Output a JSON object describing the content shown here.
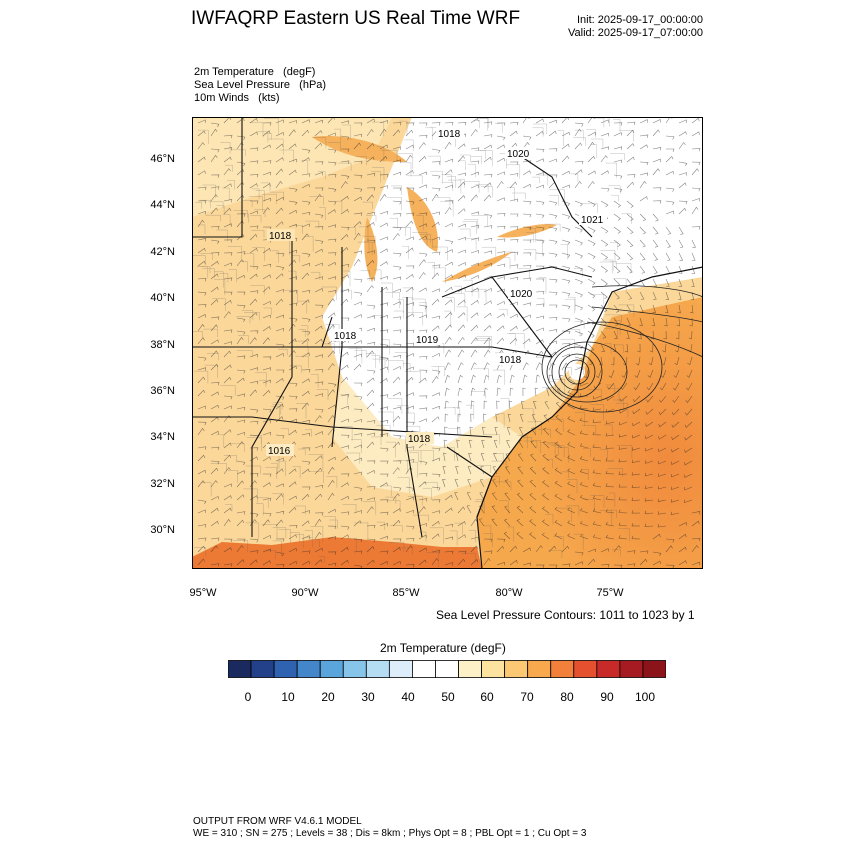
{
  "title": "IWFAQRP Eastern US Real Time WRF",
  "init": "Init: 2025-09-17_00:00:00",
  "valid": "Valid: 2025-09-17_07:00:00",
  "fields": [
    "2m Temperature   (degF)",
    "Sea Level Pressure   (hPa)",
    "10m Winds   (kts)"
  ],
  "lat_labels": [
    "46°N",
    "44°N",
    "42°N",
    "40°N",
    "38°N",
    "36°N",
    "34°N",
    "32°N",
    "30°N"
  ],
  "lon_labels": [
    "95°W",
    "90°W",
    "85°W",
    "80°W",
    "75°W"
  ],
  "pressure_labels": [
    "1018",
    "1020",
    "1021",
    "1018",
    "1020",
    "1018",
    "1019",
    "1018",
    "1016",
    "1018"
  ],
  "contour_note": "Sea Level Pressure Contours: 1011 to 1023 by 1",
  "colorbar": {
    "title": "2m Temperature  (degF)",
    "colors": [
      "#1a2a5e",
      "#23418a",
      "#2f62b0",
      "#4386c9",
      "#5aa6dc",
      "#86c4ea",
      "#b4dcf3",
      "#ddeefa",
      "#ffffff",
      "#ffffff",
      "#fdf1c8",
      "#fde2a0",
      "#fcc874",
      "#f8a94e",
      "#f2803a",
      "#e5512f",
      "#c82a2a",
      "#a51b21",
      "#8a1419"
    ],
    "tick_labels": [
      "0",
      "10",
      "20",
      "30",
      "40",
      "50",
      "60",
      "70",
      "80",
      "90",
      "100"
    ]
  },
  "footer": [
    "OUTPUT FROM WRF V4.6.1 MODEL",
    "WE = 310 ; SN = 275 ; Levels = 38 ; Dis = 8km ; Phys Opt = 8 ; PBL Opt = 1 ; Cu Opt = 3"
  ]
}
